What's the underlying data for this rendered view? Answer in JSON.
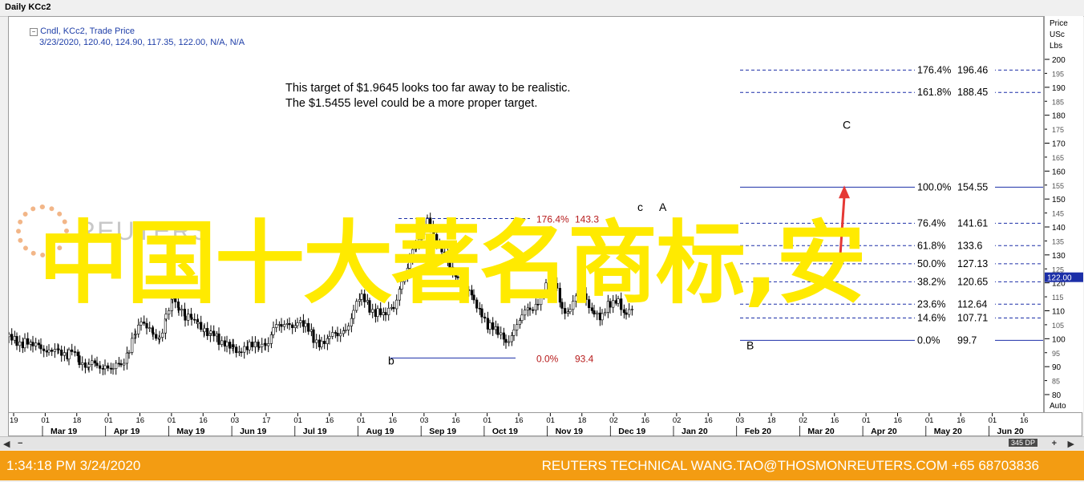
{
  "window_title": "Daily KCc2",
  "legend": {
    "line1": "Cndl, KCc2, Trade Price",
    "line2": "3/23/2020, 120.40, 124.90, 117.35, 122.00, N/A, N/A"
  },
  "annotation": {
    "line1": "This target of $1.9645 looks too far away to be realistic.",
    "line2": "The $1.5455 level could be a more proper target."
  },
  "watermark": "中国十大著名商标,安",
  "logo_text": "REUTERS",
  "price_axis_header": [
    "Price",
    "USc",
    "Lbs"
  ],
  "price_axis_footer": "Auto",
  "last_price_label": "122.00",
  "footer": {
    "left": "1:34:18 PM 3/24/2020",
    "right": "REUTERS TECHNICAL  WANG.TAO@THOSMONREUTERS.COM  +65 68703836"
  },
  "scrollbar": {
    "zoom_label": "345 DP"
  },
  "chart_data": {
    "type": "candlestick",
    "y_range": [
      80,
      200
    ],
    "y_ticks": [
      80,
      85,
      90,
      95,
      100,
      105,
      110,
      115,
      120,
      125,
      130,
      135,
      140,
      145,
      150,
      155,
      160,
      165,
      170,
      175,
      180,
      185,
      190,
      195,
      200
    ],
    "x_day_ticks": [
      "19",
      "01",
      "18",
      "01",
      "16",
      "01",
      "16",
      "03",
      "17",
      "01",
      "16",
      "01",
      "16",
      "03",
      "16",
      "01",
      "16",
      "01",
      "18",
      "02",
      "16",
      "02",
      "16",
      "03",
      "18",
      "02",
      "16",
      "01",
      "16",
      "01",
      "16",
      "01",
      "16"
    ],
    "x_month_ticks": [
      "Mar 19",
      "Apr 19",
      "May 19",
      "Jun 19",
      "Jul 19",
      "Aug 19",
      "Sep 19",
      "Oct 19",
      "Nov 19",
      "Dec 19",
      "Jan 20",
      "Feb 20",
      "Mar 20",
      "Apr 20",
      "May 20",
      "Jun 20"
    ],
    "price_path": [
      [
        0,
        101
      ],
      [
        10,
        100
      ],
      [
        20,
        99
      ],
      [
        30,
        97
      ],
      [
        40,
        98
      ],
      [
        50,
        96
      ],
      [
        62,
        97
      ],
      [
        75,
        95
      ],
      [
        88,
        93
      ],
      [
        100,
        91
      ],
      [
        110,
        92
      ],
      [
        120,
        90
      ],
      [
        130,
        89
      ],
      [
        140,
        91
      ],
      [
        150,
        97
      ],
      [
        158,
        104
      ],
      [
        165,
        108
      ],
      [
        172,
        105
      ],
      [
        180,
        103
      ],
      [
        188,
        101
      ],
      [
        196,
        108
      ],
      [
        204,
        114
      ],
      [
        212,
        110
      ],
      [
        220,
        108
      ],
      [
        228,
        109
      ],
      [
        236,
        107
      ],
      [
        244,
        103
      ],
      [
        252,
        101
      ],
      [
        262,
        100
      ],
      [
        272,
        99
      ],
      [
        280,
        98
      ],
      [
        290,
        96
      ],
      [
        300,
        97
      ],
      [
        312,
        97
      ],
      [
        320,
        98
      ],
      [
        330,
        103
      ],
      [
        340,
        105
      ],
      [
        350,
        106
      ],
      [
        360,
        106
      ],
      [
        370,
        104
      ],
      [
        380,
        101
      ],
      [
        390,
        99
      ],
      [
        400,
        100
      ],
      [
        410,
        102
      ],
      [
        420,
        104
      ],
      [
        430,
        110
      ],
      [
        440,
        115
      ],
      [
        450,
        112
      ],
      [
        460,
        110
      ],
      [
        470,
        108
      ],
      [
        480,
        112
      ],
      [
        490,
        121
      ],
      [
        500,
        128
      ],
      [
        508,
        133
      ],
      [
        515,
        138
      ],
      [
        522,
        142
      ],
      [
        530,
        136
      ],
      [
        540,
        131
      ],
      [
        550,
        127
      ],
      [
        560,
        122
      ],
      [
        570,
        117
      ],
      [
        580,
        114
      ],
      [
        590,
        110
      ],
      [
        600,
        104
      ],
      [
        610,
        102
      ],
      [
        620,
        100
      ],
      [
        630,
        103
      ],
      [
        640,
        108
      ],
      [
        650,
        111
      ],
      [
        660,
        114
      ],
      [
        670,
        118
      ],
      [
        680,
        121
      ],
      [
        690,
        112
      ],
      [
        700,
        110
      ],
      [
        710,
        117
      ],
      [
        720,
        115
      ],
      [
        730,
        110
      ],
      [
        740,
        107
      ],
      [
        750,
        113
      ],
      [
        760,
        115
      ],
      [
        770,
        108
      ],
      [
        780,
        111
      ]
    ],
    "fib_ab": {
      "levels": [
        {
          "pct": "0.0%",
          "value": "93.4"
        },
        {
          "pct": "176.4%",
          "value": "143.3"
        }
      ]
    },
    "fib_bc": {
      "levels": [
        {
          "pct": "176.4%",
          "value": "196.46",
          "price": 196.46
        },
        {
          "pct": "161.8%",
          "value": "188.45",
          "price": 188.45
        },
        {
          "pct": "100.0%",
          "value": "154.55",
          "price": 154.55
        },
        {
          "pct": "76.4%",
          "value": "141.61",
          "price": 141.61
        },
        {
          "pct": "61.8%",
          "value": "133.6",
          "price": 133.6
        },
        {
          "pct": "50.0%",
          "value": "127.13",
          "price": 127.13
        },
        {
          "pct": "38.2%",
          "value": "120.65",
          "price": 120.65
        },
        {
          "pct": "23.6%",
          "value": "112.64",
          "price": 112.64
        },
        {
          "pct": "14.6%",
          "value": "107.71",
          "price": 107.71
        },
        {
          "pct": "0.0%",
          "value": "99.7",
          "price": 99.7
        }
      ]
    },
    "wave_labels": [
      {
        "text": "b",
        "price": 91
      },
      {
        "text": "c",
        "price": 146
      },
      {
        "text": "A",
        "price": 146
      },
      {
        "text": "B",
        "price": 96.5
      },
      {
        "text": "C",
        "price": 175.5
      }
    ],
    "arrow": {
      "from_price": 126,
      "to_price": 154,
      "color": "#e53935"
    }
  }
}
